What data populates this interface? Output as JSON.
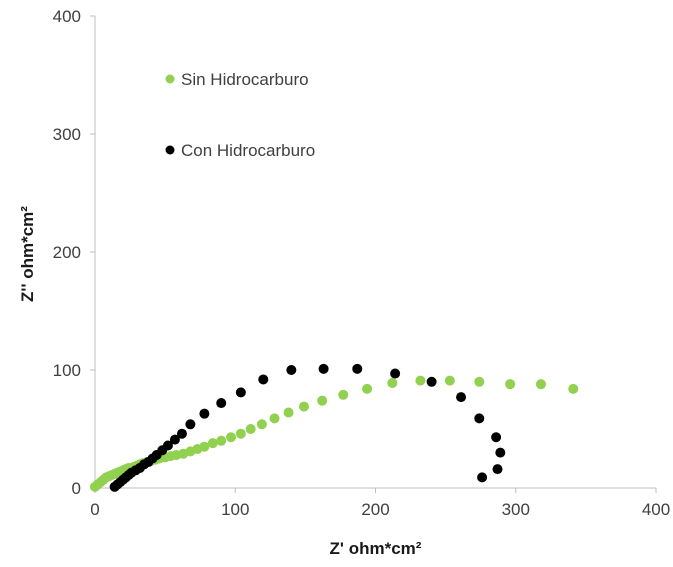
{
  "chart_data": {
    "type": "scatter",
    "title": "",
    "xlabel": "Z' ohm*cm²",
    "ylabel": "Z'' ohm*cm²",
    "xlim": [
      0,
      400
    ],
    "ylim": [
      0,
      400
    ],
    "xticks": [
      "0",
      "100",
      "200",
      "300",
      "400"
    ],
    "yticks": [
      "0",
      "100",
      "200",
      "300",
      "400"
    ],
    "grid": false,
    "legend": "top-left",
    "series": [
      {
        "name": "Sin Hidrocarburo",
        "color": "#92d050",
        "points": [
          [
            0,
            1
          ],
          [
            2,
            3
          ],
          [
            4,
            5
          ],
          [
            6,
            7
          ],
          [
            8,
            9
          ],
          [
            10,
            10
          ],
          [
            12,
            11
          ],
          [
            14,
            12
          ],
          [
            16,
            13
          ],
          [
            18,
            14
          ],
          [
            20,
            15
          ],
          [
            22,
            16
          ],
          [
            24,
            17
          ],
          [
            26,
            17
          ],
          [
            28,
            18
          ],
          [
            30,
            19
          ],
          [
            32,
            20
          ],
          [
            34,
            21
          ],
          [
            37,
            22
          ],
          [
            40,
            23
          ],
          [
            43,
            24
          ],
          [
            46,
            25
          ],
          [
            50,
            26
          ],
          [
            54,
            27
          ],
          [
            58,
            28
          ],
          [
            63,
            29
          ],
          [
            68,
            31
          ],
          [
            73,
            33
          ],
          [
            78,
            35
          ],
          [
            84,
            38
          ],
          [
            90,
            40
          ],
          [
            97,
            43
          ],
          [
            104,
            46
          ],
          [
            111,
            50
          ],
          [
            119,
            54
          ],
          [
            128,
            59
          ],
          [
            138,
            64
          ],
          [
            149,
            69
          ],
          [
            162,
            74
          ],
          [
            177,
            79
          ],
          [
            194,
            84
          ],
          [
            212,
            89
          ],
          [
            232,
            91
          ],
          [
            253,
            91
          ],
          [
            274,
            90
          ],
          [
            296,
            88
          ],
          [
            318,
            88
          ],
          [
            341,
            84
          ]
        ]
      },
      {
        "name": "Con Hidrocarburo",
        "color": "#000000",
        "points": [
          [
            14,
            1
          ],
          [
            16,
            3
          ],
          [
            18,
            5
          ],
          [
            20,
            7
          ],
          [
            22,
            9
          ],
          [
            24,
            11
          ],
          [
            26,
            13
          ],
          [
            29,
            15
          ],
          [
            32,
            17
          ],
          [
            35,
            20
          ],
          [
            38,
            22
          ],
          [
            41,
            25
          ],
          [
            44,
            28
          ],
          [
            48,
            32
          ],
          [
            52,
            36
          ],
          [
            57,
            41
          ],
          [
            62,
            46
          ],
          [
            68,
            54
          ],
          [
            78,
            63
          ],
          [
            90,
            72
          ],
          [
            104,
            81
          ],
          [
            120,
            92
          ],
          [
            140,
            100
          ],
          [
            163,
            101
          ],
          [
            187,
            101
          ],
          [
            214,
            97
          ],
          [
            240,
            90
          ],
          [
            261,
            77
          ],
          [
            274,
            59
          ],
          [
            286,
            43
          ],
          [
            289,
            30
          ],
          [
            287,
            16
          ],
          [
            276,
            9
          ]
        ]
      }
    ]
  }
}
